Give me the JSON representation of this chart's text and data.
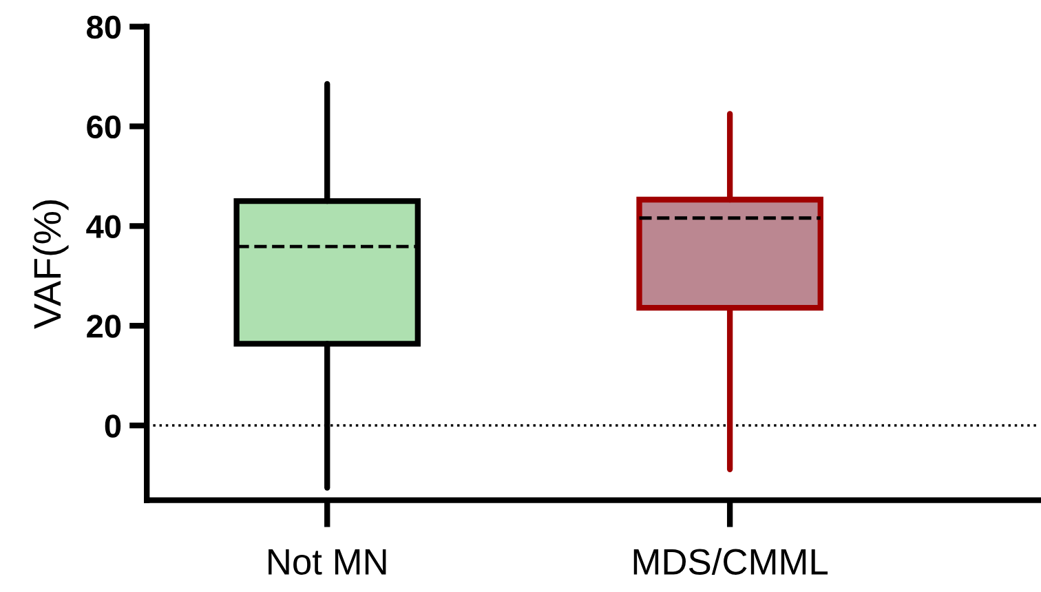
{
  "chart_data": {
    "type": "box",
    "ylabel": "VAF(%)",
    "categories": [
      "Not MN",
      "MDS/CMML"
    ],
    "colors": [
      "#aee0b0",
      "#bb8791"
    ],
    "boxes": [
      {
        "low": -12.5,
        "q1": 16.4,
        "median": 35.9,
        "q3": 45.0,
        "high": 68.5
      },
      {
        "low": -8.8,
        "q1": 23.6,
        "median": 41.6,
        "q3": 45.3,
        "high": 62.5
      }
    ],
    "ylim": [
      -15,
      80
    ],
    "yticks": [
      0,
      20,
      40,
      60,
      80
    ],
    "grid": false,
    "ref_lines": [
      {
        "axis": "y",
        "value": 0,
        "color": "#000000",
        "line_style": "dotted"
      }
    ]
  }
}
